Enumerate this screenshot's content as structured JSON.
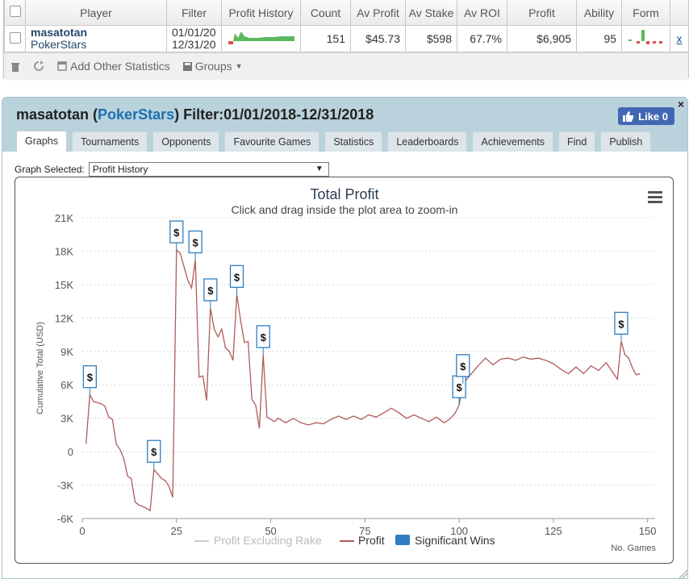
{
  "table": {
    "headers": [
      "Player",
      "Filter",
      "Profit History",
      "Count",
      "Av Profit",
      "Av Stake",
      "Av ROI",
      "Profit",
      "Ability",
      "Form"
    ],
    "row": {
      "player_name": "masatotan",
      "player_site": "PokerStars",
      "filter_from": "01/01/20",
      "filter_to": "12/31/20",
      "count": "151",
      "av_profit": "$45.73",
      "av_stake": "$598",
      "av_roi": "67.7%",
      "profit": "$6,905",
      "ability": "95",
      "remove": "x"
    },
    "toolbar": {
      "delete_icon": "trash-icon",
      "refresh_icon": "refresh-icon",
      "add_stats": "Add Other Statistics",
      "groups": "Groups"
    }
  },
  "panel": {
    "name": "masatotan",
    "open_paren": "(",
    "site": "PokerStars",
    "filter_text": ") Filter:01/01/2018-12/31/2018",
    "like": "Like 0",
    "close": "×",
    "tabs": [
      "Graphs",
      "Tournaments",
      "Opponents",
      "Favourite Games",
      "Statistics",
      "Leaderboards",
      "Achievements",
      "Find",
      "Publish"
    ],
    "active_tab": "Graphs",
    "graph_label": "Graph Selected:",
    "graph_value": "Profit History"
  },
  "colors": {
    "profit_line": "#b05a5a",
    "flag_border": "#2f7ec1",
    "legend_rake": "#cccccc",
    "legend_sig": "#2f7ec1",
    "sparkline": "#5cb85c"
  },
  "chart_data": {
    "type": "line",
    "title": "Total Profit",
    "subtitle": "Click and drag inside the plot area to zoom-in",
    "ylabel": "Cumulative Total (USD)",
    "xlabel": "No. Games",
    "xlim": [
      0,
      152
    ],
    "ylim": [
      -6000,
      21000
    ],
    "x_ticks": [
      0,
      25,
      50,
      75,
      100,
      125,
      150
    ],
    "y_ticks": [
      -6000,
      -3000,
      0,
      3000,
      6000,
      9000,
      12000,
      15000,
      18000,
      21000
    ],
    "y_tick_labels": [
      "-6K",
      "-3K",
      "0",
      "3K",
      "6K",
      "9K",
      "12K",
      "15K",
      "18K",
      "21K"
    ],
    "legend": [
      "Profit Excluding Rake",
      "Profit",
      "Significant Wins"
    ],
    "legend_position": "bottom-center",
    "series": [
      {
        "name": "Profit",
        "points": [
          [
            1,
            700
          ],
          [
            2,
            5100
          ],
          [
            3,
            4500
          ],
          [
            4,
            4400
          ],
          [
            5,
            4300
          ],
          [
            6,
            4100
          ],
          [
            7,
            3100
          ],
          [
            8,
            2900
          ],
          [
            9,
            700
          ],
          [
            10,
            200
          ],
          [
            11,
            -600
          ],
          [
            12,
            -2200
          ],
          [
            13,
            -2400
          ],
          [
            14,
            -4500
          ],
          [
            15,
            -4800
          ],
          [
            16,
            -4900
          ],
          [
            17,
            -5100
          ],
          [
            18,
            -5300
          ],
          [
            19,
            -1600
          ],
          [
            20,
            -2000
          ],
          [
            21,
            -2400
          ],
          [
            22,
            -2600
          ],
          [
            23,
            -3100
          ],
          [
            24,
            -4100
          ],
          [
            25,
            18100
          ],
          [
            26,
            17800
          ],
          [
            27,
            16600
          ],
          [
            28,
            15400
          ],
          [
            29,
            14700
          ],
          [
            30,
            17200
          ],
          [
            31,
            6700
          ],
          [
            32,
            6800
          ],
          [
            33,
            4600
          ],
          [
            34,
            12900
          ],
          [
            35,
            11000
          ],
          [
            36,
            10300
          ],
          [
            37,
            11000
          ],
          [
            38,
            9300
          ],
          [
            39,
            9000
          ],
          [
            40,
            8200
          ],
          [
            41,
            14100
          ],
          [
            42,
            11800
          ],
          [
            43,
            9800
          ],
          [
            44,
            9900
          ],
          [
            45,
            4700
          ],
          [
            46,
            4200
          ],
          [
            47,
            2100
          ],
          [
            48,
            8700
          ],
          [
            49,
            3100
          ],
          [
            50,
            2900
          ],
          [
            51,
            2700
          ],
          [
            52,
            3000
          ],
          [
            54,
            2600
          ],
          [
            56,
            3000
          ],
          [
            58,
            2600
          ],
          [
            60,
            2400
          ],
          [
            62,
            2600
          ],
          [
            64,
            2500
          ],
          [
            66,
            2900
          ],
          [
            68,
            3200
          ],
          [
            70,
            2900
          ],
          [
            72,
            3200
          ],
          [
            74,
            2900
          ],
          [
            76,
            3300
          ],
          [
            78,
            3100
          ],
          [
            80,
            3500
          ],
          [
            82,
            3900
          ],
          [
            84,
            3500
          ],
          [
            86,
            3000
          ],
          [
            88,
            3300
          ],
          [
            90,
            3000
          ],
          [
            92,
            2700
          ],
          [
            94,
            3100
          ],
          [
            96,
            2600
          ],
          [
            97,
            2800
          ],
          [
            98,
            3100
          ],
          [
            99,
            3500
          ],
          [
            100,
            4200
          ],
          [
            101,
            6100
          ],
          [
            103,
            6900
          ],
          [
            105,
            7700
          ],
          [
            107,
            8400
          ],
          [
            109,
            7800
          ],
          [
            111,
            8300
          ],
          [
            113,
            8400
          ],
          [
            115,
            8200
          ],
          [
            117,
            8500
          ],
          [
            119,
            8300
          ],
          [
            121,
            8400
          ],
          [
            123,
            8200
          ],
          [
            125,
            7900
          ],
          [
            127,
            7400
          ],
          [
            129,
            7000
          ],
          [
            131,
            7600
          ],
          [
            133,
            7000
          ],
          [
            135,
            7700
          ],
          [
            137,
            7300
          ],
          [
            139,
            8000
          ],
          [
            140,
            7500
          ],
          [
            141,
            7000
          ],
          [
            142,
            6500
          ],
          [
            143,
            9900
          ],
          [
            144,
            8700
          ],
          [
            145,
            8400
          ],
          [
            146,
            7500
          ],
          [
            147,
            6900
          ],
          [
            148,
            7000
          ]
        ]
      }
    ],
    "significant_wins": [
      [
        2,
        5100
      ],
      [
        19,
        -1600
      ],
      [
        25,
        18100
      ],
      [
        30,
        17200
      ],
      [
        34,
        12900
      ],
      [
        41,
        14100
      ],
      [
        48,
        8700
      ],
      [
        100,
        4200
      ],
      [
        101,
        6100
      ],
      [
        143,
        9900
      ]
    ]
  }
}
